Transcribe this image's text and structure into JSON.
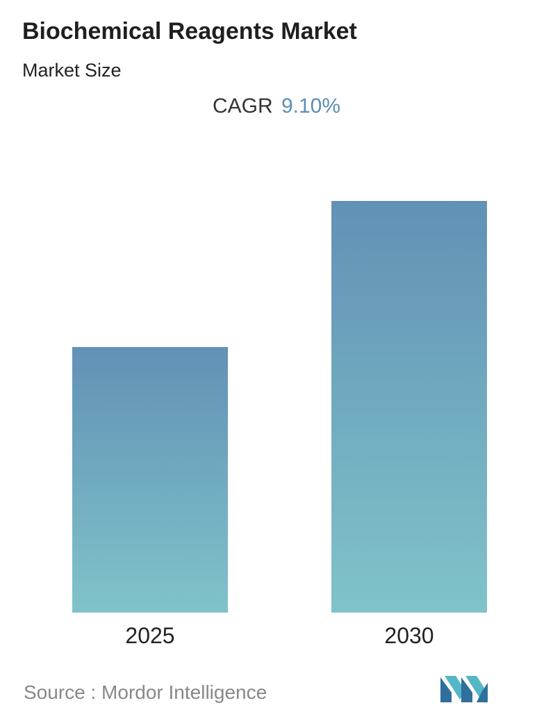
{
  "header": {
    "title": "Biochemical Reagents Market",
    "subtitle": "Market Size"
  },
  "cagr": {
    "label": "CAGR",
    "value": "9.10%"
  },
  "chart_data": {
    "type": "bar",
    "categories": [
      "2025",
      "2030"
    ],
    "values": [
      1.0,
      1.55
    ],
    "title": "",
    "xlabel": "",
    "ylabel": "",
    "ylim": [
      0,
      1.55
    ],
    "grid": false,
    "colors": {
      "bar_top": "#6291b6",
      "bar_bottom": "#80c3c9"
    }
  },
  "footer": {
    "source": "Source :  Mordor Intelligence",
    "logo_icon": "mordor-intelligence-logo-icon",
    "logo_colors": [
      "#2e6f9e",
      "#53b7c6"
    ]
  }
}
